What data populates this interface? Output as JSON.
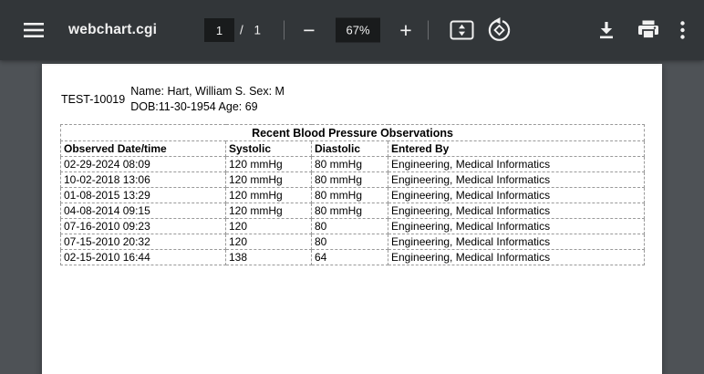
{
  "toolbar": {
    "title": "webchart.cgi",
    "page_input": "1",
    "page_total": "/ 1",
    "zoom_out_glyph": "−",
    "zoom_level": "67%",
    "zoom_in_glyph": "+"
  },
  "icons": {
    "menu": "hamburger-icon",
    "fit": "fit-to-page-icon",
    "rotate": "rotate-counterclockwise-icon",
    "download": "download-icon",
    "print": "print-icon",
    "more": "more-options-icon"
  },
  "document": {
    "patient_id": "TEST-10019",
    "name_line": "Name: Hart, William S. Sex: M",
    "dob_line": "DOB:11-30-1954 Age: 69",
    "table": {
      "title": "Recent Blood Pressure Observations",
      "columns": [
        "Observed Date/time",
        "Systolic",
        "Diastolic",
        "Entered By"
      ],
      "rows": [
        [
          "02-29-2024 08:09",
          "120 mmHg",
          "80 mmHg",
          "Engineering, Medical Informatics"
        ],
        [
          "10-02-2018 13:06",
          "120 mmHg",
          "80 mmHg",
          "Engineering, Medical Informatics"
        ],
        [
          "01-08-2015 13:29",
          "120 mmHg",
          "80 mmHg",
          "Engineering, Medical Informatics"
        ],
        [
          "04-08-2014 09:15",
          "120 mmHg",
          "80 mmHg",
          "Engineering, Medical Informatics"
        ],
        [
          "07-16-2010 09:23",
          "120",
          "80",
          "Engineering, Medical Informatics"
        ],
        [
          "07-15-2010 20:32",
          "120",
          "80",
          "Engineering, Medical Informatics"
        ],
        [
          "02-15-2010 16:44",
          "138",
          "64",
          "Engineering, Medical Informatics"
        ]
      ]
    }
  },
  "colors": {
    "toolbar_bg": "#323639",
    "toolbar_field_bg": "#191b1c",
    "toolbar_icon": "#f1f1f1",
    "viewer_bg": "#4e5256",
    "page_bg": "#ffffff",
    "table_border": "#8f8f8f",
    "text": "#000000"
  }
}
